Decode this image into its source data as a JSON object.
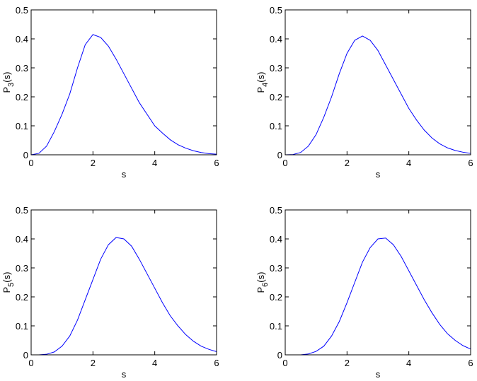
{
  "chart_data": [
    {
      "type": "line",
      "ylabel": [
        "P",
        "3",
        "(s)"
      ],
      "xlabel": "s",
      "x": [
        0,
        0.25,
        0.5,
        0.75,
        1,
        1.25,
        1.5,
        1.75,
        2,
        2.25,
        2.5,
        2.75,
        3,
        3.25,
        3.5,
        3.75,
        4,
        4.25,
        4.5,
        4.75,
        5,
        5.25,
        5.5,
        5.75,
        6
      ],
      "values": [
        0,
        0.005,
        0.03,
        0.08,
        0.14,
        0.21,
        0.3,
        0.38,
        0.415,
        0.405,
        0.375,
        0.33,
        0.28,
        0.23,
        0.18,
        0.14,
        0.1,
        0.075,
        0.052,
        0.035,
        0.023,
        0.014,
        0.008,
        0.004,
        0.002
      ],
      "color": "#0000ff",
      "xlim": [
        0,
        6
      ],
      "xticks": [
        0,
        2,
        4,
        6
      ],
      "ylim": [
        0,
        0.5
      ],
      "yticks": [
        0,
        0.1,
        0.2,
        0.3,
        0.4,
        0.5
      ]
    },
    {
      "type": "line",
      "ylabel": [
        "P",
        "4",
        "(s)"
      ],
      "xlabel": "s",
      "x": [
        0,
        0.25,
        0.5,
        0.75,
        1,
        1.25,
        1.5,
        1.75,
        2,
        2.25,
        2.5,
        2.75,
        3,
        3.25,
        3.5,
        3.75,
        4,
        4.25,
        4.5,
        4.75,
        5,
        5.25,
        5.5,
        5.75,
        6
      ],
      "values": [
        0,
        0.001,
        0.008,
        0.03,
        0.07,
        0.13,
        0.2,
        0.28,
        0.35,
        0.395,
        0.41,
        0.395,
        0.36,
        0.31,
        0.26,
        0.21,
        0.16,
        0.12,
        0.085,
        0.058,
        0.038,
        0.024,
        0.015,
        0.009,
        0.005
      ],
      "color": "#0000ff",
      "xlim": [
        0,
        6
      ],
      "xticks": [
        0,
        2,
        4,
        6
      ],
      "ylim": [
        0,
        0.5
      ],
      "yticks": [
        0,
        0.1,
        0.2,
        0.3,
        0.4,
        0.5
      ]
    },
    {
      "type": "line",
      "ylabel": [
        "P",
        "5",
        "(s)"
      ],
      "xlabel": "s",
      "x": [
        0,
        0.25,
        0.5,
        0.75,
        1,
        1.25,
        1.5,
        1.75,
        2,
        2.25,
        2.5,
        2.75,
        3,
        3.25,
        3.5,
        3.75,
        4,
        4.25,
        4.5,
        4.75,
        5,
        5.25,
        5.5,
        5.75,
        6
      ],
      "values": [
        0,
        0,
        0.002,
        0.01,
        0.03,
        0.065,
        0.12,
        0.19,
        0.26,
        0.33,
        0.38,
        0.405,
        0.4,
        0.375,
        0.33,
        0.28,
        0.23,
        0.18,
        0.135,
        0.1,
        0.07,
        0.047,
        0.03,
        0.019,
        0.011
      ],
      "color": "#0000ff",
      "xlim": [
        0,
        6
      ],
      "xticks": [
        0,
        2,
        4,
        6
      ],
      "ylim": [
        0,
        0.5
      ],
      "yticks": [
        0,
        0.1,
        0.2,
        0.3,
        0.4,
        0.5
      ]
    },
    {
      "type": "line",
      "ylabel": [
        "P",
        "6",
        "(s)"
      ],
      "xlabel": "s",
      "x": [
        0,
        0.25,
        0.5,
        0.75,
        1,
        1.25,
        1.5,
        1.75,
        2,
        2.25,
        2.5,
        2.75,
        3,
        3.25,
        3.5,
        3.75,
        4,
        4.25,
        4.5,
        4.75,
        5,
        5.25,
        5.5,
        5.75,
        6
      ],
      "values": [
        0,
        0,
        0,
        0.003,
        0.012,
        0.03,
        0.065,
        0.115,
        0.18,
        0.25,
        0.32,
        0.37,
        0.4,
        0.403,
        0.38,
        0.34,
        0.29,
        0.24,
        0.19,
        0.145,
        0.105,
        0.073,
        0.05,
        0.032,
        0.02
      ],
      "color": "#0000ff",
      "xlim": [
        0,
        6
      ],
      "xticks": [
        0,
        2,
        4,
        6
      ],
      "ylim": [
        0,
        0.5
      ],
      "yticks": [
        0,
        0.1,
        0.2,
        0.3,
        0.4,
        0.5
      ]
    }
  ]
}
